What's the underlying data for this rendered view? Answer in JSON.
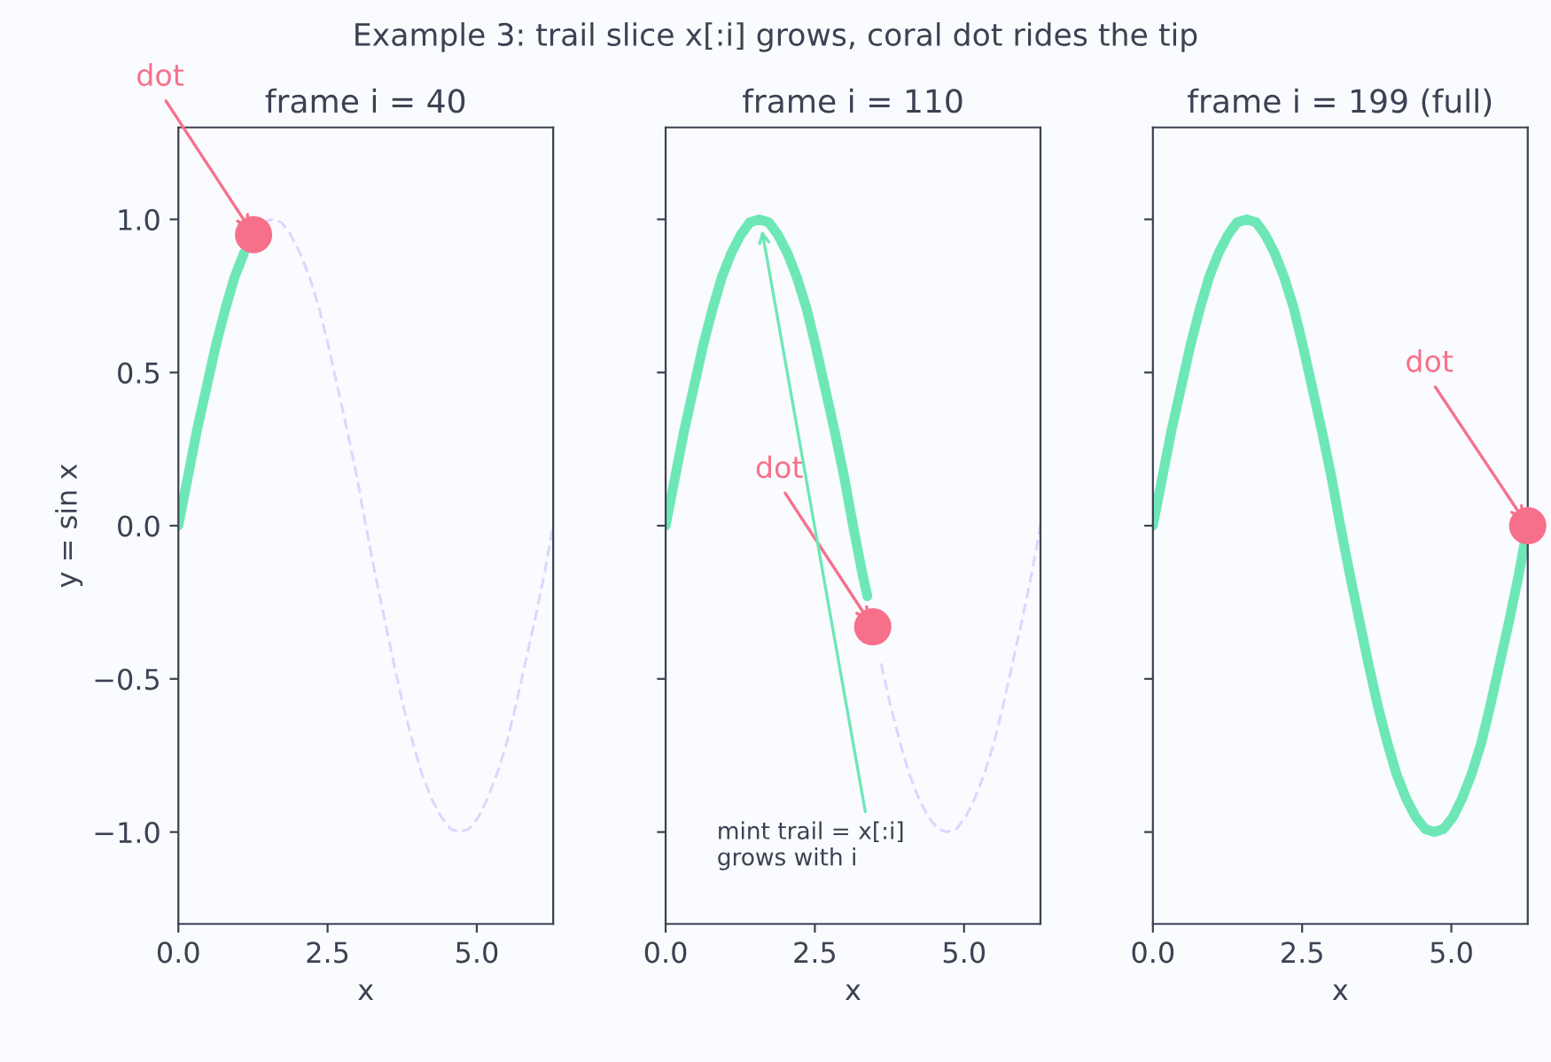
{
  "chart_data": [
    {
      "type": "line",
      "title": "frame i = 40",
      "xlabel": "x",
      "ylabel": "y = sin x",
      "xlim": [
        0,
        6.28
      ],
      "ylim": [
        -1.3,
        1.3
      ],
      "xticks": [
        {
          "value": 0,
          "label": "0.0"
        },
        {
          "value": 2.5,
          "label": "2.5"
        },
        {
          "value": 5,
          "label": "5.0"
        }
      ],
      "yticks": [
        {
          "value": -1,
          "label": "−1.0"
        },
        {
          "value": -0.5,
          "label": "−0.5"
        },
        {
          "value": 0,
          "label": "0.0"
        },
        {
          "value": 0.5,
          "label": "0.5"
        },
        {
          "value": 1,
          "label": "1.0"
        }
      ],
      "grid": false,
      "legend": false,
      "annotations": [
        "Example 3: trail slice x[:i] grows, coral dot rides the tip",
        {
          "text": "dot",
          "x": 1.26,
          "y": 0.95
        }
      ],
      "series": [
        {
          "line_style": "dashed",
          "color": "#ddd6fe",
          "x": [
            1.41,
            1.57,
            1.73,
            1.88,
            2.04,
            2.2,
            2.36,
            2.51,
            2.67,
            2.83,
            2.99,
            3.14,
            3.3,
            3.46,
            3.61,
            3.77,
            3.93,
            4.08,
            4.24,
            4.4,
            4.56,
            4.71,
            4.87,
            5.03,
            5.18,
            5.34,
            5.5,
            5.65,
            5.81,
            5.97,
            6.13,
            6.28
          ],
          "values": [
            0.99,
            1.0,
            0.99,
            0.95,
            0.89,
            0.81,
            0.71,
            0.59,
            0.45,
            0.31,
            0.16,
            0,
            -0.16,
            -0.31,
            -0.45,
            -0.59,
            -0.71,
            -0.81,
            -0.89,
            -0.95,
            -0.99,
            -1.0,
            -0.99,
            -0.95,
            -0.89,
            -0.81,
            -0.71,
            -0.59,
            -0.45,
            -0.31,
            -0.16,
            0
          ]
        },
        {
          "line_style": "solid",
          "color": "#6ee7b7",
          "x": [
            0,
            0.16,
            0.31,
            0.47,
            0.63,
            0.79,
            0.94,
            1.1
          ],
          "values": [
            0,
            0.16,
            0.31,
            0.45,
            0.59,
            0.71,
            0.81,
            0.89
          ]
        },
        {
          "type": "scatter",
          "marker": "circle",
          "color": "#f7708a",
          "x": [
            1.26
          ],
          "values": [
            0.95
          ]
        }
      ]
    },
    {
      "type": "line",
      "title": "frame i = 110",
      "xlabel": "x",
      "xlim": [
        0,
        6.28
      ],
      "ylim": [
        -1.3,
        1.3
      ],
      "tick_labels": "x",
      "xticks": [
        {
          "value": 0,
          "label": "0.0"
        },
        {
          "value": 2.5,
          "label": "2.5"
        },
        {
          "value": 5,
          "label": "5.0"
        }
      ],
      "yticks": [
        -1,
        -0.5,
        0,
        0.5,
        1
      ],
      "grid": false,
      "legend": false,
      "annotations": [
        {
          "text": "dot",
          "x": 3.47,
          "y": -0.33
        },
        {
          "text": "mint trail = x[:i]\ngrows with i",
          "x": 1.6,
          "y": 0.98
        }
      ],
      "series": [
        {
          "line_style": "dashed",
          "color": "#ddd6fe",
          "x": [
            3.61,
            3.77,
            3.93,
            4.08,
            4.24,
            4.4,
            4.56,
            4.71,
            4.87,
            5.03,
            5.18,
            5.34,
            5.5,
            5.65,
            5.81,
            5.97,
            6.13,
            6.28
          ],
          "values": [
            -0.45,
            -0.59,
            -0.71,
            -0.81,
            -0.89,
            -0.95,
            -0.99,
            -1.0,
            -0.99,
            -0.95,
            -0.89,
            -0.81,
            -0.71,
            -0.59,
            -0.45,
            -0.31,
            -0.16,
            0
          ]
        },
        {
          "line_style": "solid",
          "color": "#6ee7b7",
          "x": [
            0,
            0.16,
            0.31,
            0.47,
            0.63,
            0.79,
            0.94,
            1.1,
            1.26,
            1.41,
            1.57,
            1.73,
            1.88,
            2.04,
            2.2,
            2.36,
            2.51,
            2.67,
            2.83,
            2.99,
            3.14,
            3.3,
            3.38
          ],
          "values": [
            0,
            0.16,
            0.31,
            0.45,
            0.59,
            0.71,
            0.81,
            0.89,
            0.95,
            0.99,
            1.0,
            0.99,
            0.95,
            0.89,
            0.81,
            0.71,
            0.59,
            0.45,
            0.31,
            0.16,
            0,
            -0.16,
            -0.23
          ]
        },
        {
          "type": "scatter",
          "marker": "circle",
          "color": "#f7708a",
          "x": [
            3.47
          ],
          "values": [
            -0.33
          ]
        }
      ]
    },
    {
      "type": "line",
      "title": "frame i = 199 (full)",
      "xlabel": "x",
      "xlim": [
        0,
        6.28
      ],
      "ylim": [
        -1.3,
        1.3
      ],
      "tick_labels": "x",
      "xticks": [
        {
          "value": 0,
          "label": "0.0"
        },
        {
          "value": 2.5,
          "label": "2.5"
        },
        {
          "value": 5,
          "label": "5.0"
        }
      ],
      "yticks": [
        -1,
        -0.5,
        0,
        0.5,
        1
      ],
      "grid": false,
      "legend": false,
      "annotations": [
        {
          "text": "dot",
          "x": 6.28,
          "y": 0
        }
      ],
      "series": [
        {
          "line_style": "solid",
          "color": "#6ee7b7",
          "x": [
            0,
            0.16,
            0.31,
            0.47,
            0.63,
            0.79,
            0.94,
            1.1,
            1.26,
            1.41,
            1.57,
            1.73,
            1.88,
            2.04,
            2.2,
            2.36,
            2.51,
            2.67,
            2.83,
            2.99,
            3.14,
            3.3,
            3.46,
            3.61,
            3.77,
            3.93,
            4.08,
            4.24,
            4.4,
            4.56,
            4.71,
            4.87,
            5.03,
            5.18,
            5.34,
            5.5,
            5.65,
            5.81,
            5.97,
            6.13,
            6.28
          ],
          "values": [
            0,
            0.16,
            0.31,
            0.45,
            0.59,
            0.71,
            0.81,
            0.89,
            0.95,
            0.99,
            1.0,
            0.99,
            0.95,
            0.89,
            0.81,
            0.71,
            0.59,
            0.45,
            0.31,
            0.16,
            0,
            -0.16,
            -0.31,
            -0.45,
            -0.59,
            -0.71,
            -0.81,
            -0.89,
            -0.95,
            -0.99,
            -1.0,
            -0.99,
            -0.95,
            -0.89,
            -0.81,
            -0.71,
            -0.59,
            -0.45,
            -0.31,
            -0.16,
            0
          ]
        },
        {
          "type": "scatter",
          "marker": "circle",
          "color": "#f7708a",
          "x": [
            6.28
          ],
          "values": [
            0
          ]
        }
      ]
    }
  ]
}
